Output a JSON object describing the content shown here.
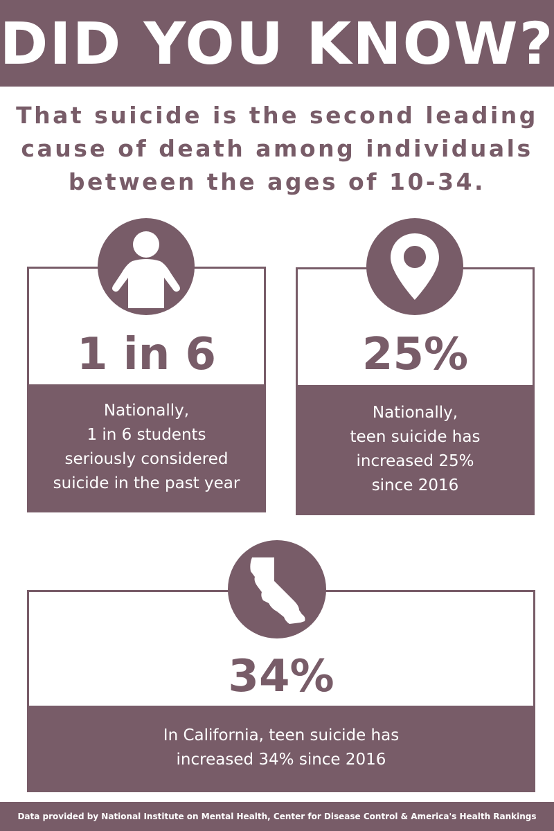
{
  "header": {
    "title": "DID YOU KNOW?"
  },
  "subtitle": "That suicide is the second leading\ncause of death among individuals\nbetween the ages of 10-34.",
  "cards": [
    {
      "icon": "person-icon",
      "stat": "1 in 6",
      "description": "Nationally,\n1 in 6 students\nseriously considered\nsuicide in the past year"
    },
    {
      "icon": "location-pin-icon",
      "stat": "25%",
      "description": "Nationally,\nteen suicide has\nincreased 25%\nsince 2016"
    },
    {
      "icon": "california-map-icon",
      "stat": "34%",
      "description": "In California, teen suicide has\nincreased 34% since 2016"
    }
  ],
  "footer": {
    "text": "Data provided by National Institute on Mental Health, Center for Disease Control & America's Health Rankings"
  },
  "colors": {
    "primary": "#785c68",
    "background": "#ffffff",
    "text_on_primary": "#ffffff"
  }
}
